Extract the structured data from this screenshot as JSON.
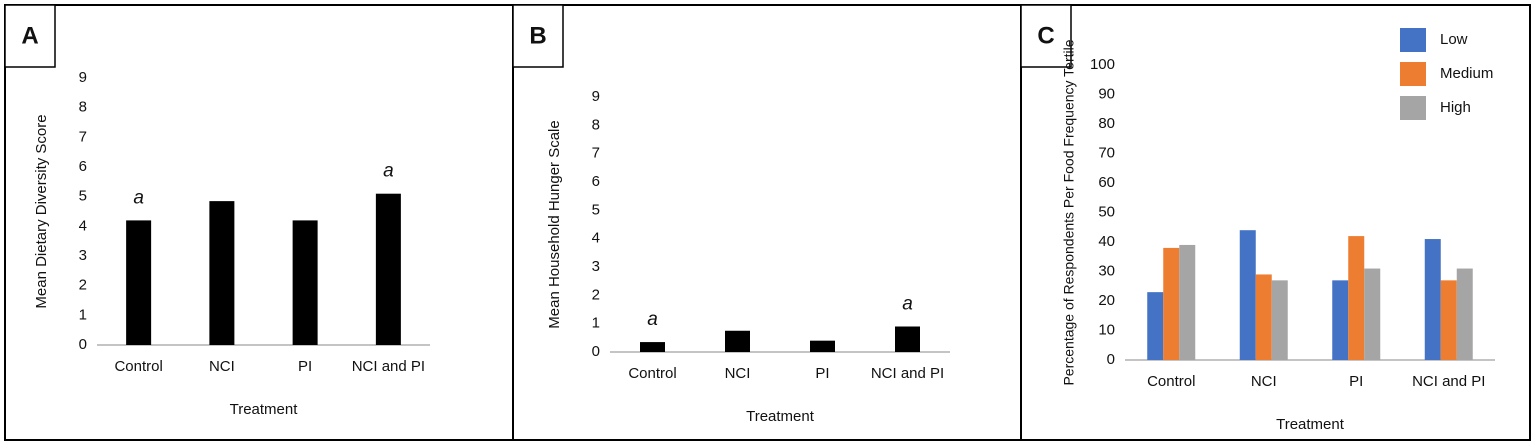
{
  "chart_data": [
    {
      "type": "bar",
      "panel": "A",
      "ylabel": "Mean Dietary Diversity Score",
      "xlabel": "Treatment",
      "categories": [
        "Control",
        "NCI",
        "PI",
        "NCI and PI"
      ],
      "values": [
        4.2,
        4.85,
        4.2,
        5.1
      ],
      "color": "#000000",
      "bar_labels": [
        "a",
        null,
        null,
        "a"
      ],
      "ylim": [
        0,
        9
      ],
      "yticks": [
        0,
        1,
        2,
        3,
        4,
        5,
        6,
        7,
        8,
        9
      ]
    },
    {
      "type": "bar",
      "panel": "B",
      "ylabel": "Mean Household Hunger Scale",
      "xlabel": "Treatment",
      "categories": [
        "Control",
        "NCI",
        "PI",
        "NCI and PI"
      ],
      "values": [
        0.35,
        0.75,
        0.4,
        0.9
      ],
      "color": "#000000",
      "bar_labels": [
        "a",
        null,
        null,
        "a"
      ],
      "ylim": [
        0,
        9
      ],
      "yticks": [
        0,
        1,
        2,
        3,
        4,
        5,
        6,
        7,
        8,
        9
      ]
    },
    {
      "type": "grouped-bar",
      "panel": "C",
      "ylabel": "Percentage of Respondents Per Food Frequency Tertile",
      "xlabel": "Treatment",
      "categories": [
        "Control",
        "NCI",
        "PI",
        "NCI and PI"
      ],
      "series": [
        {
          "name": "Low",
          "color": "#4472c4",
          "values": [
            23,
            44,
            27,
            41
          ]
        },
        {
          "name": "Medium",
          "color": "#ed7d31",
          "values": [
            38,
            29,
            42,
            27
          ]
        },
        {
          "name": "High",
          "color": "#a5a5a5",
          "values": [
            39,
            27,
            31,
            31
          ]
        }
      ],
      "ylim": [
        0,
        100
      ],
      "yticks": [
        0,
        10,
        20,
        30,
        40,
        50,
        60,
        70,
        80,
        90,
        100
      ],
      "legend": "top-right"
    }
  ]
}
